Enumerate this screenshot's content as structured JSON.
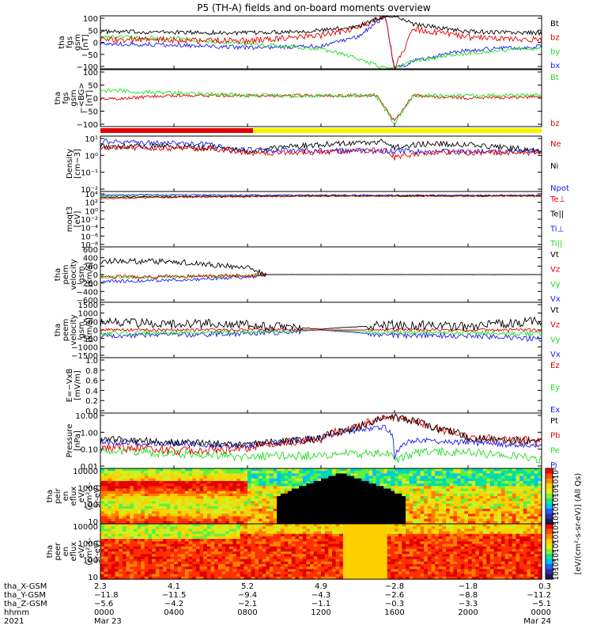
{
  "title": "P5 (TH-A) fields and on-board moments overview",
  "colors": {
    "black": "#000000",
    "red": "#e00000",
    "green": "#22dd22",
    "blue": "#1a1aee",
    "sw_red": "#e00000",
    "sw_yellow": "#f5f500"
  },
  "panels": [
    {
      "ylabel": [
        "tha",
        "fgs",
        "gsm",
        "[nT]"
      ],
      "yticks": [
        "100",
        "50",
        "0",
        "−50",
        "−100"
      ],
      "legend": [
        [
          "Bt",
          "black"
        ],
        [
          "bz",
          "red"
        ],
        [
          "by",
          "green"
        ],
        [
          "bx",
          "blue"
        ]
      ]
    },
    {
      "ylabel": [
        "tha",
        "fgs",
        "gsm",
        "−<BG>",
        "[nT]"
      ],
      "yticks": [
        "100",
        "50",
        "0",
        "−50",
        "−100"
      ],
      "legend": [
        [
          "Bt",
          "green"
        ],
        [
          "bz",
          "red"
        ]
      ]
    },
    {
      "ylabel": [
        "Density",
        "[cm−3]"
      ],
      "yticks": [
        "10¹",
        "10⁰",
        "10⁻¹",
        "10⁻²"
      ],
      "legend": [
        [
          "Ne",
          "red"
        ],
        [
          "Ni",
          "black"
        ],
        [
          "Npot",
          "blue"
        ]
      ]
    },
    {
      "ylabel": [
        "moqt3",
        "[eV]"
      ],
      "yticks": [
        "10⁴",
        "10²",
        "10⁰",
        "10⁻²",
        "10⁻⁴",
        "10⁻⁶",
        "10⁻⁸"
      ],
      "legend": [
        [
          "Te⊥",
          "red"
        ],
        [
          "Te||",
          "black"
        ],
        [
          "Ti⊥",
          "blue"
        ],
        [
          "Ti||",
          "green"
        ]
      ]
    },
    {
      "ylabel": [
        "tha",
        "peim",
        "velocity",
        "gsm",
        "[km/s]"
      ],
      "yticks": [
        "600",
        "400",
        "200",
        "0",
        "−200",
        "−400",
        "−600"
      ],
      "legend": [
        [
          "Vt",
          "black"
        ],
        [
          "Vz",
          "red"
        ],
        [
          "Vy",
          "green"
        ],
        [
          "Vx",
          "blue"
        ]
      ]
    },
    {
      "ylabel": [
        "tha",
        "peem",
        "velocity",
        "gsm",
        "[km/s]"
      ],
      "yticks": [
        "1500",
        "1000",
        "500",
        "0",
        "−500",
        "−1000",
        "−1500"
      ],
      "legend": [
        [
          "Vt",
          "black"
        ],
        [
          "Vz",
          "red"
        ],
        [
          "Vy",
          "green"
        ],
        [
          "Vx",
          "blue"
        ]
      ]
    },
    {
      "ylabel": [
        "E=−VxB",
        "[mV/m]"
      ],
      "yticks": [
        "1.0",
        "0.8",
        "0.6",
        "0.4",
        "0.2",
        "0.0"
      ],
      "legend": [
        [
          "Ez",
          "red"
        ],
        [
          "Ey",
          "green"
        ],
        [
          "Ex",
          "blue"
        ]
      ]
    },
    {
      "ylabel": [
        "Pressure",
        "[nPa]"
      ],
      "yticks": [
        "10.00",
        "1.00",
        "0.10",
        "0.01"
      ],
      "legend": [
        [
          "Pt",
          "black"
        ],
        [
          "Pb",
          "red"
        ],
        [
          "Pe",
          "green"
        ],
        [
          "Pi",
          "blue"
        ]
      ]
    },
    {
      "ylabel": [
        "tha",
        "peir",
        "en",
        "eflux",
        "eV/",
        "(cm²-s-",
        "sr-eV)"
      ],
      "yticks": [
        "10000",
        "1000",
        "100",
        "10"
      ]
    },
    {
      "ylabel": [
        "tha",
        "peer",
        "en",
        "eflux",
        "eV/",
        "(cm²-s-",
        "sr-eV)"
      ],
      "yticks": [
        "10000",
        "1000",
        "100",
        "10"
      ]
    }
  ],
  "colorbar": {
    "label": "[eV/(cm²-s-sr-eV)] (All Qs)",
    "ticks_top": [
      "10⁸",
      "10⁷",
      "10⁶",
      "10⁵",
      "10⁴",
      "10³"
    ],
    "ticks_bottom": [
      "10⁸",
      "10⁷",
      "10⁶",
      "10⁵",
      "10⁴",
      "10³"
    ]
  },
  "xaxis": {
    "row_labels": [
      "tha_X-GSM",
      "tha_Y-GSM",
      "tha_Z-GSM",
      "hhmm",
      "2021"
    ],
    "columns": [
      [
        "2.3",
        "−11.8",
        "−5.6",
        "0000",
        "Mar 23"
      ],
      [
        "4.1",
        "−11.5",
        "−4.2",
        "0400",
        ""
      ],
      [
        "5.2",
        "−9.4",
        "−2.1",
        "0800",
        ""
      ],
      [
        "4.9",
        "−4.3",
        "−1.1",
        "1200",
        ""
      ],
      [
        "−2.8",
        "−2.6",
        "−0.3",
        "1600",
        ""
      ],
      [
        "−1.8",
        "−8.8",
        "−3.3",
        "2000",
        ""
      ],
      [
        "0.3",
        "−11.2",
        "−5.1",
        "0000",
        "Mar 24"
      ]
    ]
  },
  "chart_data": [
    {
      "type": "line",
      "title": "tha fgs gsm",
      "x_range_hours": [
        0,
        24
      ],
      "ylim": [
        -100,
        100
      ],
      "series": [
        {
          "name": "Bt",
          "x": [
            0,
            4,
            8,
            12,
            14,
            15.5,
            16,
            17,
            20,
            24
          ],
          "y": [
            40,
            38,
            35,
            45,
            60,
            100,
            100,
            70,
            40,
            35
          ]
        },
        {
          "name": "bz",
          "x": [
            0,
            4,
            8,
            12,
            14,
            15.5,
            16,
            17,
            20,
            24
          ],
          "y": [
            10,
            8,
            5,
            25,
            55,
            100,
            -100,
            50,
            20,
            10
          ]
        },
        {
          "name": "by",
          "x": [
            0,
            4,
            8,
            12,
            14,
            15.5,
            16,
            17,
            20,
            24
          ],
          "y": [
            20,
            15,
            -5,
            -25,
            -60,
            -100,
            -100,
            -70,
            -40,
            -20
          ]
        },
        {
          "name": "bx",
          "x": [
            0,
            4,
            8,
            12,
            14,
            15.5,
            16,
            17,
            20,
            24
          ],
          "y": [
            -5,
            -10,
            -20,
            -15,
            20,
            100,
            -100,
            -70,
            -30,
            -15
          ]
        }
      ]
    },
    {
      "type": "line",
      "title": "tha fgs gsm -<BG>",
      "x_range_hours": [
        0,
        24
      ],
      "ylim": [
        -120,
        100
      ],
      "series": [
        {
          "name": "Bt",
          "x": [
            0,
            4,
            8,
            12,
            15,
            16,
            17,
            20,
            24
          ],
          "y": [
            20,
            10,
            0,
            0,
            0,
            -110,
            0,
            0,
            0
          ]
        },
        {
          "name": "bz",
          "x": [
            0,
            4,
            8,
            12,
            15,
            16,
            17,
            20,
            24
          ],
          "y": [
            -15,
            0,
            0,
            0,
            0,
            -100,
            0,
            -10,
            -5
          ]
        }
      ]
    },
    {
      "type": "line",
      "title": "Density",
      "yscale": "log",
      "ylim": [
        0.001,
        10
      ],
      "series": [
        {
          "name": "Ne",
          "x": [
            0,
            6,
            8,
            12,
            15.5,
            16,
            18,
            24
          ],
          "y": [
            1.5,
            1.2,
            0.6,
            0.7,
            1.0,
            0.25,
            0.7,
            0.6
          ]
        },
        {
          "name": "Ni",
          "x": [
            0,
            6,
            8,
            12,
            15.5,
            16,
            18,
            24
          ],
          "y": [
            2,
            1.5,
            0.7,
            2.5,
            4.0,
            1.5,
            3.0,
            0.8
          ]
        },
        {
          "name": "Npot",
          "x": [
            0,
            6,
            7,
            24
          ],
          "y": [
            4,
            2.5,
            1.0,
            0.7
          ]
        }
      ]
    },
    {
      "type": "line",
      "title": "moqt3",
      "yscale": "log",
      "ylim": [
        1e-08,
        10000
      ],
      "series": [
        {
          "name": "Te⊥",
          "x": [
            0,
            12,
            24
          ],
          "y": [
            300,
            1000,
            1000
          ]
        },
        {
          "name": "Te||",
          "x": [
            0,
            12,
            24
          ],
          "y": [
            500,
            1200,
            1200
          ]
        },
        {
          "name": "Ti⊥",
          "x": [
            0,
            12,
            24
          ],
          "y": [
            2000,
            1500,
            1500
          ]
        },
        {
          "name": "Ti||",
          "x": [
            0,
            12,
            24
          ],
          "y": [
            1000,
            1000,
            1000
          ]
        }
      ]
    },
    {
      "type": "line",
      "title": "tha peim velocity gsm",
      "ylim": [
        -600,
        600
      ],
      "series": [
        {
          "name": "Vt",
          "x": [
            0,
            4,
            8,
            9,
            24
          ],
          "y": [
            300,
            280,
            150,
            0,
            0
          ]
        },
        {
          "name": "Vz",
          "x": [
            0,
            4,
            8,
            9,
            24
          ],
          "y": [
            -50,
            -40,
            -20,
            0,
            0
          ]
        },
        {
          "name": "Vy",
          "x": [
            0,
            4,
            8,
            9,
            24
          ],
          "y": [
            -50,
            -50,
            -20,
            0,
            0
          ]
        },
        {
          "name": "Vx",
          "x": [
            0,
            4,
            8,
            9,
            24
          ],
          "y": [
            -150,
            -120,
            -50,
            0,
            0
          ]
        }
      ]
    },
    {
      "type": "line",
      "title": "tha peem velocity gsm",
      "ylim": [
        -1500,
        1500
      ],
      "series": [
        {
          "name": "Vt",
          "x": [
            0,
            8,
            12,
            16,
            20,
            24
          ],
          "y": [
            400,
            300,
            50,
            300,
            200,
            500
          ]
        },
        {
          "name": "Vz",
          "x": [
            0,
            8,
            12,
            16,
            20,
            24
          ],
          "y": [
            0,
            0,
            0,
            0,
            0,
            0
          ]
        },
        {
          "name": "Vy",
          "x": [
            0,
            8,
            12,
            16,
            20,
            24
          ],
          "y": [
            -200,
            -100,
            0,
            -150,
            -150,
            -200
          ]
        },
        {
          "name": "Vx",
          "x": [
            0,
            8,
            12,
            16,
            20,
            24
          ],
          "y": [
            -300,
            -200,
            0,
            -300,
            -300,
            -500
          ]
        }
      ]
    },
    {
      "type": "line",
      "title": "E=-VxB",
      "ylim": [
        0,
        1.0
      ],
      "series": [
        {
          "name": "Ez",
          "x": [],
          "y": []
        },
        {
          "name": "Ey",
          "x": [],
          "y": []
        },
        {
          "name": "Ex",
          "x": [],
          "y": []
        }
      ]
    },
    {
      "type": "line",
      "title": "Pressure",
      "yscale": "log",
      "ylim": [
        0.005,
        30
      ],
      "series": [
        {
          "name": "Pt",
          "x": [
            0,
            4,
            8,
            12,
            14,
            16,
            18,
            20,
            24
          ],
          "y": [
            0.5,
            0.3,
            0.2,
            0.5,
            3,
            15,
            3,
            0.6,
            0.35
          ]
        },
        {
          "name": "Pb",
          "x": [
            0,
            4,
            8,
            12,
            14,
            16,
            18,
            20,
            24
          ],
          "y": [
            0.15,
            0.08,
            0.12,
            0.5,
            3,
            15,
            3,
            0.6,
            0.35
          ]
        },
        {
          "name": "Pe",
          "x": [
            0,
            4,
            8,
            12,
            15.5,
            16,
            18,
            24
          ],
          "y": [
            0.08,
            0.05,
            0.03,
            0.04,
            0.06,
            0.015,
            0.08,
            0.02
          ]
        },
        {
          "name": "Pi",
          "x": [
            0,
            4,
            8,
            12,
            15.5,
            16,
            17,
            24
          ],
          "y": [
            0.3,
            0.25,
            0.15,
            0.6,
            3.0,
            0.02,
            0.4,
            0.15
          ]
        }
      ]
    },
    {
      "type": "heatmap",
      "title": "tha peir en eflux",
      "yscale": "log",
      "ylim": [
        10,
        20000
      ],
      "zscale": "log",
      "zlim": [
        1000,
        100000000
      ]
    },
    {
      "type": "heatmap",
      "title": "tha peer en eflux",
      "yscale": "log",
      "ylim": [
        10,
        20000
      ],
      "zscale": "log",
      "zlim": [
        1000,
        100000000
      ]
    }
  ]
}
